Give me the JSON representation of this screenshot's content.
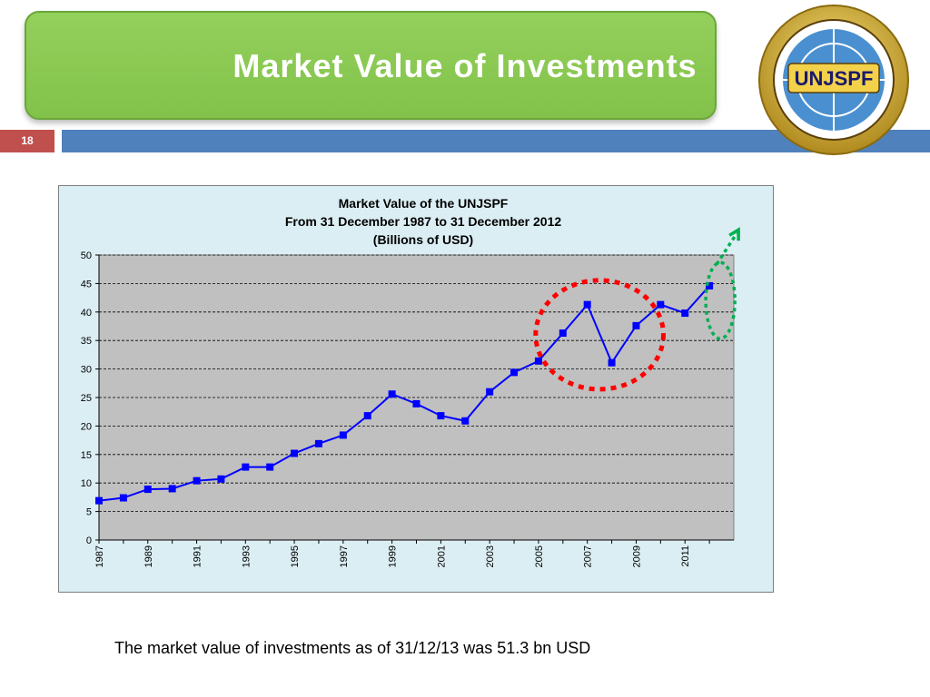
{
  "slide": {
    "title": "Market Value of Investments",
    "slide_number": "18",
    "logo_text": "UNJSPF",
    "footnote": "The market value of investments as of 31/12/13 was 51.3 bn USD"
  },
  "colors": {
    "title_green": "#8cc652",
    "slide_number_red": "#c0504d",
    "bar_blue": "#4f81bd",
    "chart_background": "#dbeef4",
    "plot_area": "#c0c0c0",
    "series_line": "#0000ff",
    "red_circle": "#ff0000",
    "green_circle": "#00b050"
  },
  "chart_data": {
    "type": "line",
    "title": "Market Value of the UNJSPF",
    "subtitle_line1": "From 31 December 1987 to 31 December 2012",
    "subtitle_line2": "(Billions of USD)",
    "xlabel": "",
    "ylabel": "",
    "x": [
      1987,
      1988,
      1989,
      1990,
      1991,
      1992,
      1993,
      1994,
      1995,
      1996,
      1997,
      1998,
      1999,
      2000,
      2001,
      2002,
      2003,
      2004,
      2005,
      2006,
      2007,
      2008,
      2009,
      2010,
      2011,
      2012
    ],
    "x_tick_labels": [
      "1987",
      "1989",
      "1991",
      "1993",
      "1995",
      "1997",
      "1999",
      "2001",
      "2003",
      "2005",
      "2007",
      "2009",
      "2011"
    ],
    "series": [
      {
        "name": "",
        "values": [
          6.9,
          7.4,
          8.9,
          9.0,
          10.4,
          10.7,
          12.8,
          12.8,
          15.2,
          16.9,
          18.4,
          21.8,
          25.6,
          23.9,
          21.8,
          20.9,
          26.0,
          29.4,
          31.4,
          36.3,
          41.3,
          31.1,
          37.6,
          41.3,
          39.8,
          44.6
        ]
      }
    ],
    "y_tick_labels": [
      "0",
      "5",
      "10",
      "15",
      "20",
      "25",
      "30",
      "35",
      "40",
      "45",
      "50"
    ],
    "ylim": [
      0,
      50
    ],
    "grid": "horizontal dashed",
    "legend": "none",
    "annotations": [
      {
        "kind": "dotted-ellipse",
        "color": "red",
        "around_years": [
          2006,
          2009
        ]
      },
      {
        "kind": "dotted-ellipse-with-arrow",
        "color": "green",
        "around_years": [
          2012,
          2012
        ]
      }
    ]
  }
}
